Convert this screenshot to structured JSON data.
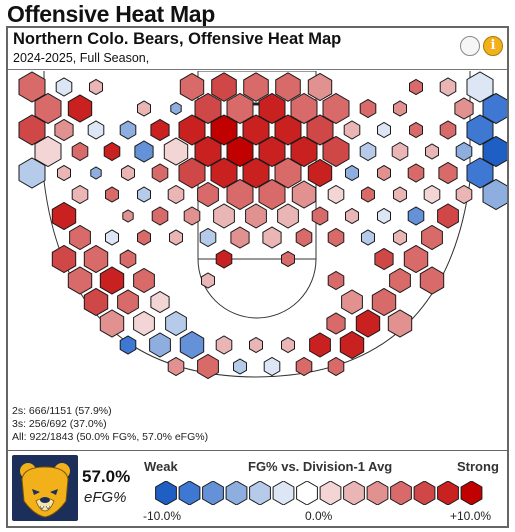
{
  "page": {
    "title": "Offensive Heat Map"
  },
  "card": {
    "title": "Northern Colo. Bears, Offensive Heat Map",
    "subtitle": "2024-2025, Full Season,",
    "info_icon_glyph": "i"
  },
  "icons": [
    "empty-circle-icon",
    "info-icon",
    "bear-logo-icon"
  ],
  "summary": {
    "twos": "2s: 666/1151 (57.9%)",
    "threes": "3s: 256/692 (37.0%)",
    "all": "All: 922/1843 (50.0% FG%, 57.0% eFG%)",
    "efg_value": "57.0%",
    "efg_label": "eFG%"
  },
  "legend": {
    "weak": "Weak",
    "strong": "Strong",
    "title": "FG% vs. Division-1 Avg",
    "min_label": "-10.0%",
    "mid_label": "0.0%",
    "max_label": "+10.0%",
    "colors": [
      "#1f5fc4",
      "#3f78d2",
      "#6591d8",
      "#8eaedf",
      "#b6cbe9",
      "#dde6f4",
      "#ffffff",
      "#f3d5d5",
      "#eab5b5",
      "#e29191",
      "#d86a6a",
      "#cf4747",
      "#c92020",
      "#c10000"
    ]
  },
  "colors": {
    "strong_red": "#c10000",
    "strong_blue": "#1f5fc4",
    "logo_navy": "#1c2f5a",
    "logo_gold": "#f2b11b"
  },
  "chart_data": {
    "type": "heatmap",
    "scale": "FG% vs. Division-1 Avg",
    "color_range": [
      -10,
      10
    ],
    "x_unit": "hex column index (court offset)",
    "y_unit": "hex row index from baseline",
    "cells": [
      {
        "c": -7,
        "r": 0,
        "v": 5,
        "s": 1
      },
      {
        "c": -6,
        "r": 0,
        "v": -3,
        "s": 0.6
      },
      {
        "c": -5,
        "r": 0,
        "v": 2,
        "s": 0.5
      },
      {
        "c": -2,
        "r": 0,
        "v": 6,
        "s": 0.9
      },
      {
        "c": -1,
        "r": 0,
        "v": 7,
        "s": 0.95
      },
      {
        "c": 0,
        "r": 0,
        "v": 5,
        "s": 0.95
      },
      {
        "c": 1,
        "r": 0,
        "v": 6,
        "s": 0.95
      },
      {
        "c": 2,
        "r": 0,
        "v": 4,
        "s": 0.9
      },
      {
        "c": 5,
        "r": 0,
        "v": 6,
        "s": 0.5
      },
      {
        "c": 6,
        "r": 0,
        "v": 3,
        "s": 0.6
      },
      {
        "c": 7,
        "r": 0,
        "v": -2,
        "s": 1
      },
      {
        "c": -7,
        "r": 1,
        "v": 6,
        "s": 1
      },
      {
        "c": -6,
        "r": 1,
        "v": 9,
        "s": 0.9
      },
      {
        "c": -4,
        "r": 1,
        "v": 3,
        "s": 0.5
      },
      {
        "c": -3,
        "r": 1,
        "v": -6,
        "s": 0.4
      },
      {
        "c": -2,
        "r": 1,
        "v": 7,
        "s": 1
      },
      {
        "c": -1,
        "r": 1,
        "v": 5,
        "s": 1
      },
      {
        "c": 0,
        "r": 1,
        "v": 8,
        "s": 1
      },
      {
        "c": 1,
        "r": 1,
        "v": 6,
        "s": 1
      },
      {
        "c": 2,
        "r": 1,
        "v": 5,
        "s": 1
      },
      {
        "c": 3,
        "r": 1,
        "v": 6,
        "s": 0.6
      },
      {
        "c": 4,
        "r": 1,
        "v": 4,
        "s": 0.5
      },
      {
        "c": 6,
        "r": 1,
        "v": 4,
        "s": 0.7
      },
      {
        "c": 7,
        "r": 1,
        "v": -8,
        "s": 1
      },
      {
        "c": -7,
        "r": 2,
        "v": 7,
        "s": 1
      },
      {
        "c": -6,
        "r": 2,
        "v": 4,
        "s": 0.7
      },
      {
        "c": -5,
        "r": 2,
        "v": -2,
        "s": 0.6
      },
      {
        "c": -4,
        "r": 2,
        "v": -5,
        "s": 0.6
      },
      {
        "c": -3,
        "r": 2,
        "v": 9,
        "s": 0.7
      },
      {
        "c": -2,
        "r": 2,
        "v": 8,
        "s": 1
      },
      {
        "c": -1,
        "r": 2,
        "v": 10,
        "s": 1
      },
      {
        "c": 0,
        "r": 2,
        "v": 9,
        "s": 1
      },
      {
        "c": 1,
        "r": 2,
        "v": 8,
        "s": 1
      },
      {
        "c": 2,
        "r": 2,
        "v": 7,
        "s": 1
      },
      {
        "c": 3,
        "r": 2,
        "v": 3,
        "s": 0.6
      },
      {
        "c": 4,
        "r": 2,
        "v": -3,
        "s": 0.5
      },
      {
        "c": 5,
        "r": 2,
        "v": 5,
        "s": 0.5
      },
      {
        "c": 6,
        "r": 2,
        "v": 6,
        "s": 0.6
      },
      {
        "c": 7,
        "r": 2,
        "v": -9,
        "s": 1
      },
      {
        "c": -7,
        "r": 3,
        "v": 0,
        "s": 1
      },
      {
        "c": -6,
        "r": 3,
        "v": 5,
        "s": 0.6
      },
      {
        "c": -5,
        "r": 3,
        "v": 8,
        "s": 0.6
      },
      {
        "c": -4,
        "r": 3,
        "v": -7,
        "s": 0.7
      },
      {
        "c": -3,
        "r": 3,
        "v": 0,
        "s": 0.9
      },
      {
        "c": -2,
        "r": 3,
        "v": 9,
        "s": 1
      },
      {
        "c": -1,
        "r": 3,
        "v": 10,
        "s": 1
      },
      {
        "c": 0,
        "r": 3,
        "v": 8,
        "s": 1
      },
      {
        "c": 1,
        "r": 3,
        "v": 9,
        "s": 1
      },
      {
        "c": 2,
        "r": 3,
        "v": 7,
        "s": 1
      },
      {
        "c": 3,
        "r": 3,
        "v": -4,
        "s": 0.6
      },
      {
        "c": 4,
        "r": 3,
        "v": 2,
        "s": 0.6
      },
      {
        "c": 5,
        "r": 3,
        "v": 3,
        "s": 0.5
      },
      {
        "c": 6,
        "r": 3,
        "v": -5,
        "s": 0.6
      },
      {
        "c": 7,
        "r": 3,
        "v": -10,
        "s": 1
      },
      {
        "c": -7,
        "r": 4,
        "v": -4,
        "s": 1
      },
      {
        "c": -6,
        "r": 4,
        "v": 3,
        "s": 0.5
      },
      {
        "c": -5,
        "r": 4,
        "v": -6,
        "s": 0.4
      },
      {
        "c": -4,
        "r": 4,
        "v": 3,
        "s": 0.5
      },
      {
        "c": -3,
        "r": 4,
        "v": 6,
        "s": 0.6
      },
      {
        "c": -2,
        "r": 4,
        "v": 7,
        "s": 1
      },
      {
        "c": -1,
        "r": 4,
        "v": 9,
        "s": 1
      },
      {
        "c": 0,
        "r": 4,
        "v": 8,
        "s": 1
      },
      {
        "c": 1,
        "r": 4,
        "v": 6,
        "s": 1
      },
      {
        "c": 2,
        "r": 4,
        "v": 9,
        "s": 0.9
      },
      {
        "c": 3,
        "r": 4,
        "v": -5,
        "s": 0.5
      },
      {
        "c": 4,
        "r": 4,
        "v": 4,
        "s": 0.5
      },
      {
        "c": 5,
        "r": 4,
        "v": 6,
        "s": 0.6
      },
      {
        "c": 6,
        "r": 4,
        "v": 5,
        "s": 0.7
      },
      {
        "c": 7,
        "r": 4,
        "v": -9,
        "s": 1
      },
      {
        "c": -6,
        "r": 5,
        "v": 2,
        "s": 0.6
      },
      {
        "c": -5,
        "r": 5,
        "v": 5,
        "s": 0.5
      },
      {
        "c": -4,
        "r": 5,
        "v": -4,
        "s": 0.5
      },
      {
        "c": -3,
        "r": 5,
        "v": 3,
        "s": 0.6
      },
      {
        "c": -2,
        "r": 5,
        "v": 6,
        "s": 0.8
      },
      {
        "c": -1,
        "r": 5,
        "v": 5,
        "s": 1
      },
      {
        "c": 0,
        "r": 5,
        "v": 6,
        "s": 1
      },
      {
        "c": 1,
        "r": 5,
        "v": 4,
        "s": 0.9
      },
      {
        "c": 2,
        "r": 5,
        "v": 0,
        "s": 0.6
      },
      {
        "c": 3,
        "r": 5,
        "v": 5,
        "s": 0.5
      },
      {
        "c": 4,
        "r": 5,
        "v": 3,
        "s": 0.5
      },
      {
        "c": 5,
        "r": 5,
        "v": 0,
        "s": 0.6
      },
      {
        "c": 6,
        "r": 5,
        "v": 2,
        "s": 0.6
      },
      {
        "c": 7,
        "r": 5,
        "v": -6,
        "s": 1
      },
      {
        "c": -6,
        "r": 6,
        "v": 9,
        "s": 0.9
      },
      {
        "c": -4,
        "r": 6,
        "v": 4,
        "s": 0.4
      },
      {
        "c": -3,
        "r": 6,
        "v": 6,
        "s": 0.6
      },
      {
        "c": -2,
        "r": 6,
        "v": 4,
        "s": 0.6
      },
      {
        "c": -1,
        "r": 6,
        "v": 3,
        "s": 0.8
      },
      {
        "c": 0,
        "r": 6,
        "v": 4,
        "s": 0.8
      },
      {
        "c": 1,
        "r": 6,
        "v": 2,
        "s": 0.8
      },
      {
        "c": 2,
        "r": 6,
        "v": 6,
        "s": 0.6
      },
      {
        "c": 3,
        "r": 6,
        "v": 3,
        "s": 0.5
      },
      {
        "c": 4,
        "r": 6,
        "v": -3,
        "s": 0.5
      },
      {
        "c": 5,
        "r": 6,
        "v": -7,
        "s": 0.6
      },
      {
        "c": 6,
        "r": 6,
        "v": 7,
        "s": 0.8
      },
      {
        "c": -6,
        "r": 7,
        "v": 5,
        "s": 0.8
      },
      {
        "c": -5,
        "r": 7,
        "v": -3,
        "s": 0.5
      },
      {
        "c": -4,
        "r": 7,
        "v": 6,
        "s": 0.5
      },
      {
        "c": -3,
        "r": 7,
        "v": 3,
        "s": 0.5
      },
      {
        "c": -2,
        "r": 7,
        "v": -4,
        "s": 0.6
      },
      {
        "c": -1,
        "r": 7,
        "v": 4,
        "s": 0.7
      },
      {
        "c": 0,
        "r": 7,
        "v": 3,
        "s": 0.7
      },
      {
        "c": 1,
        "r": 7,
        "v": 5,
        "s": 0.6
      },
      {
        "c": 2,
        "r": 7,
        "v": 6,
        "s": 0.6
      },
      {
        "c": 3,
        "r": 7,
        "v": -4,
        "s": 0.5
      },
      {
        "c": 4,
        "r": 7,
        "v": 3,
        "s": 0.5
      },
      {
        "c": 5,
        "r": 7,
        "v": 5,
        "s": 0.8
      },
      {
        "c": -6,
        "r": 8,
        "v": 7,
        "s": 0.9
      },
      {
        "c": -5,
        "r": 8,
        "v": 6,
        "s": 0.9
      },
      {
        "c": -4,
        "r": 8,
        "v": 6,
        "s": 0.6
      },
      {
        "c": -1,
        "r": 8,
        "v": 8,
        "s": 0.6
      },
      {
        "c": 1,
        "r": 8,
        "v": 5,
        "s": 0.5
      },
      {
        "c": 4,
        "r": 8,
        "v": 7,
        "s": 0.7
      },
      {
        "c": 5,
        "r": 8,
        "v": 6,
        "s": 0.9
      },
      {
        "c": -6,
        "r": 9,
        "v": 6,
        "s": 0.9
      },
      {
        "c": -5,
        "r": 9,
        "v": 8,
        "s": 0.9
      },
      {
        "c": -4,
        "r": 9,
        "v": 5,
        "s": 0.8
      },
      {
        "c": -2,
        "r": 9,
        "v": 3,
        "s": 0.5
      },
      {
        "c": 2,
        "r": 9,
        "v": 5,
        "s": 0.6
      },
      {
        "c": 4,
        "r": 9,
        "v": 5,
        "s": 0.8
      },
      {
        "c": 5,
        "r": 9,
        "v": 6,
        "s": 0.9
      },
      {
        "c": -5,
        "r": 10,
        "v": 7,
        "s": 0.9
      },
      {
        "c": -4,
        "r": 10,
        "v": 5,
        "s": 0.8
      },
      {
        "c": -3,
        "r": 10,
        "v": 0,
        "s": 0.7
      },
      {
        "c": 3,
        "r": 10,
        "v": 4,
        "s": 0.8
      },
      {
        "c": 4,
        "r": 10,
        "v": 5,
        "s": 0.9
      },
      {
        "c": -5,
        "r": 11,
        "v": 4,
        "s": 0.9
      },
      {
        "c": -4,
        "r": 11,
        "v": 0,
        "s": 0.8
      },
      {
        "c": -3,
        "r": 11,
        "v": -4,
        "s": 0.8
      },
      {
        "c": 2,
        "r": 11,
        "v": 6,
        "s": 0.7
      },
      {
        "c": 3,
        "r": 11,
        "v": 8,
        "s": 0.9
      },
      {
        "c": 4,
        "r": 11,
        "v": 4,
        "s": 0.9
      },
      {
        "c": -4,
        "r": 12,
        "v": -8,
        "s": 0.6
      },
      {
        "c": -3,
        "r": 12,
        "v": -5,
        "s": 0.8
      },
      {
        "c": -2,
        "r": 12,
        "v": -7,
        "s": 0.9
      },
      {
        "c": -1,
        "r": 12,
        "v": 3,
        "s": 0.6
      },
      {
        "c": 0,
        "r": 12,
        "v": 2,
        "s": 0.5
      },
      {
        "c": 1,
        "r": 12,
        "v": 3,
        "s": 0.5
      },
      {
        "c": 2,
        "r": 12,
        "v": 9,
        "s": 0.8
      },
      {
        "c": 3,
        "r": 12,
        "v": 8,
        "s": 0.9
      },
      {
        "c": -3,
        "r": 13,
        "v": 4,
        "s": 0.6
      },
      {
        "c": -2,
        "r": 13,
        "v": 5,
        "s": 0.8
      },
      {
        "c": -1,
        "r": 13,
        "v": -4,
        "s": 0.5
      },
      {
        "c": 0,
        "r": 13,
        "v": -2,
        "s": 0.6
      },
      {
        "c": 1,
        "r": 13,
        "v": 5,
        "s": 0.6
      },
      {
        "c": 2,
        "r": 13,
        "v": 6,
        "s": 0.6
      }
    ]
  }
}
